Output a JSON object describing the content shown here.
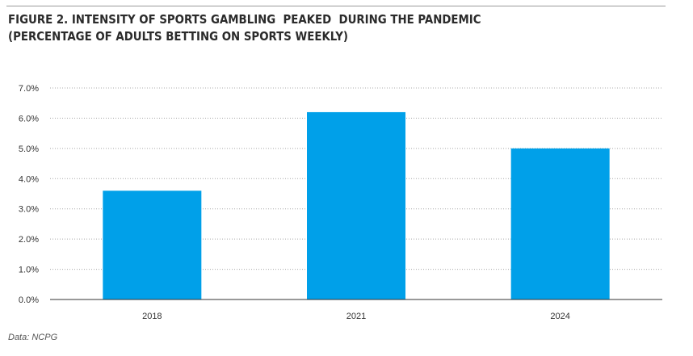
{
  "title_line1": "FIGURE 2. INTENSITY OF SPORTS GAMBLING  PEAKED  DURING THE PANDEMIC",
  "title_line2": "(PERCENTAGE OF ADULTS BETTING ON SPORTS WEEKLY)",
  "source": "Data: NCPG",
  "colors": {
    "bar": "#00a0e9",
    "grid": "#a8a8a8",
    "axis": "#333333",
    "text": "#333333"
  },
  "chart_data": {
    "type": "bar",
    "categories": [
      "2018",
      "2021",
      "2024"
    ],
    "values": [
      3.6,
      6.2,
      5.0
    ],
    "ylim": [
      0,
      7
    ],
    "yticks": [
      "0.0%",
      "1.0%",
      "2.0%",
      "3.0%",
      "4.0%",
      "5.0%",
      "6.0%",
      "7.0%"
    ],
    "grid": true,
    "grid_style": "dotted",
    "legend": "none"
  }
}
